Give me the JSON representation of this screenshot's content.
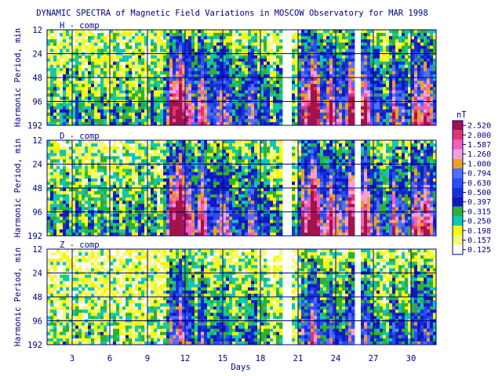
{
  "chart_data": {
    "type": "heatmap",
    "title": "DYNAMIC SPECTRA of Magnetic Field Variations in MOSCOW Observatory for MAR 1998",
    "xlabel": "Days",
    "ylabel": "Harmonic Period, min",
    "x_range": [
      1,
      32
    ],
    "x_ticks": [
      3,
      6,
      9,
      12,
      15,
      18,
      21,
      24,
      27,
      30
    ],
    "y_ticks": [
      12,
      24,
      48,
      96,
      192
    ],
    "y_scale": "log2",
    "grid": true,
    "panels": [
      {
        "name": "H - comp"
      },
      {
        "name": "D - comp"
      },
      {
        "name": "Z - comp"
      }
    ],
    "data_gaps_days": [
      [
        19.8,
        20.6
      ],
      [
        25.6,
        25.9
      ]
    ],
    "storm_days": [
      {
        "day": 10.8,
        "strength": 1.0
      },
      {
        "day": 11.6,
        "strength": 0.75
      },
      {
        "day": 13.2,
        "strength": 0.55
      },
      {
        "day": 14.8,
        "strength": 0.5
      },
      {
        "day": 17.0,
        "strength": 0.45
      },
      {
        "day": 21.3,
        "strength": 0.7
      },
      {
        "day": 22.0,
        "strength": 0.95
      },
      {
        "day": 23.6,
        "strength": 0.55
      },
      {
        "day": 25.0,
        "strength": 0.8
      },
      {
        "day": 26.2,
        "strength": 0.6
      },
      {
        "day": 28.6,
        "strength": 0.55
      },
      {
        "day": 30.2,
        "strength": 0.6
      },
      {
        "day": 31.0,
        "strength": 0.55
      }
    ],
    "colorbar": {
      "unit": "nT",
      "levels": [
        2.52,
        2.0,
        1.587,
        1.26,
        1.0,
        0.794,
        0.63,
        0.5,
        0.397,
        0.315,
        0.25,
        0.198,
        0.157,
        0.125
      ],
      "labels": [
        "2.520",
        "2.000",
        "1.587",
        "1.260",
        "1.000",
        "0.794",
        "0.630",
        "0.500",
        "0.397",
        "0.315",
        "0.250",
        "0.198",
        "0.157",
        "0.125"
      ],
      "colors": [
        "#a0144b",
        "#e0346c",
        "#f060b8",
        "#f4a0d8",
        "#f0a020",
        "#5070ff",
        "#2850f0",
        "#1830d8",
        "#1018c0",
        "#30b030",
        "#10c8b0",
        "#f8f800",
        "#f8f878",
        "#ffffff"
      ]
    }
  }
}
